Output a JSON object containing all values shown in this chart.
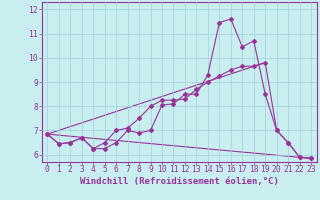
{
  "xlabel": "Windchill (Refroidissement éolien,°C)",
  "bg_color": "#c8eef0",
  "grid_color": "#a0d0d8",
  "line_color": "#993399",
  "xlim": [
    -0.5,
    23.5
  ],
  "ylim": [
    5.7,
    12.3
  ],
  "xticks": [
    0,
    1,
    2,
    3,
    4,
    5,
    6,
    7,
    8,
    9,
    10,
    11,
    12,
    13,
    14,
    15,
    16,
    17,
    18,
    19,
    20,
    21,
    22,
    23
  ],
  "yticks": [
    6,
    7,
    8,
    9,
    10,
    11,
    12
  ],
  "line1_x": [
    0,
    1,
    2,
    3,
    4,
    5,
    6,
    7,
    8,
    9,
    10,
    11,
    12,
    13,
    14,
    15,
    16,
    17,
    18,
    19,
    20,
    21,
    22,
    23
  ],
  "line1_y": [
    6.85,
    6.45,
    6.5,
    6.7,
    6.25,
    6.25,
    6.5,
    7.0,
    6.9,
    7.0,
    8.05,
    8.1,
    8.5,
    8.5,
    9.3,
    11.45,
    11.6,
    10.45,
    10.7,
    8.5,
    7.0,
    6.5,
    5.9,
    5.85
  ],
  "line2_x": [
    0,
    1,
    2,
    3,
    4,
    5,
    6,
    7,
    8,
    9,
    10,
    11,
    12,
    13,
    14,
    15,
    16,
    17,
    18,
    19,
    20,
    21,
    22,
    23
  ],
  "line2_y": [
    6.85,
    6.45,
    6.5,
    6.7,
    6.25,
    6.5,
    7.0,
    7.1,
    7.5,
    8.0,
    8.25,
    8.25,
    8.3,
    8.7,
    9.0,
    9.25,
    9.5,
    9.65,
    9.65,
    9.8,
    7.0,
    6.5,
    5.9,
    5.85
  ],
  "line3_x": [
    0,
    23
  ],
  "line3_y": [
    6.85,
    5.85
  ],
  "line4_x": [
    0,
    19
  ],
  "line4_y": [
    6.85,
    9.8
  ],
  "xlabel_fontsize": 6.5,
  "tick_fontsize": 5.8
}
